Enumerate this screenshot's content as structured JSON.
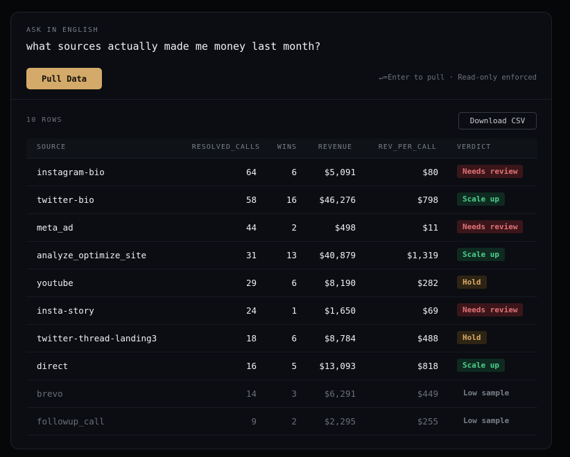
{
  "ask": {
    "label": "ASK IN ENGLISH",
    "query": "what sources actually made me money last month?",
    "pull_label": "Pull Data",
    "hint": "↵=Enter to pull · Read-only enforced"
  },
  "results": {
    "rows_label": "10 ROWS",
    "download_label": "Download CSV",
    "columns": [
      "SOURCE",
      "RESOLVED_CALLS",
      "WINS",
      "REVENUE",
      "REV_PER_CALL",
      "VERDICT"
    ],
    "rows": [
      {
        "source": "instagram-bio",
        "resolved_calls": "64",
        "wins": "6",
        "revenue": "$5,091",
        "rev_per_call": "$80",
        "verdict": "Needs review",
        "verdict_kind": "review",
        "muted": false
      },
      {
        "source": "twitter-bio",
        "resolved_calls": "58",
        "wins": "16",
        "revenue": "$46,276",
        "rev_per_call": "$798",
        "verdict": "Scale up",
        "verdict_kind": "scale",
        "muted": false
      },
      {
        "source": "meta_ad",
        "resolved_calls": "44",
        "wins": "2",
        "revenue": "$498",
        "rev_per_call": "$11",
        "verdict": "Needs review",
        "verdict_kind": "review",
        "muted": false
      },
      {
        "source": "analyze_optimize_site",
        "resolved_calls": "31",
        "wins": "13",
        "revenue": "$40,879",
        "rev_per_call": "$1,319",
        "verdict": "Scale up",
        "verdict_kind": "scale",
        "muted": false
      },
      {
        "source": "youtube",
        "resolved_calls": "29",
        "wins": "6",
        "revenue": "$8,190",
        "rev_per_call": "$282",
        "verdict": "Hold",
        "verdict_kind": "hold",
        "muted": false
      },
      {
        "source": "insta-story",
        "resolved_calls": "24",
        "wins": "1",
        "revenue": "$1,650",
        "rev_per_call": "$69",
        "verdict": "Needs review",
        "verdict_kind": "review",
        "muted": false
      },
      {
        "source": "twitter-thread-landing3",
        "resolved_calls": "18",
        "wins": "6",
        "revenue": "$8,784",
        "rev_per_call": "$488",
        "verdict": "Hold",
        "verdict_kind": "hold",
        "muted": false
      },
      {
        "source": "direct",
        "resolved_calls": "16",
        "wins": "5",
        "revenue": "$13,093",
        "rev_per_call": "$818",
        "verdict": "Scale up",
        "verdict_kind": "scale",
        "muted": false
      },
      {
        "source": "brevo",
        "resolved_calls": "14",
        "wins": "3",
        "revenue": "$6,291",
        "rev_per_call": "$449",
        "verdict": "Low sample",
        "verdict_kind": "low",
        "muted": true
      },
      {
        "source": "followup_call",
        "resolved_calls": "9",
        "wins": "2",
        "revenue": "$2,295",
        "rev_per_call": "$255",
        "verdict": "Low sample",
        "verdict_kind": "low",
        "muted": true
      }
    ]
  },
  "colors": {
    "accent": "#d4aa6a",
    "review": "#e27175",
    "scale": "#4fcf8b",
    "hold": "#d9ac66"
  }
}
